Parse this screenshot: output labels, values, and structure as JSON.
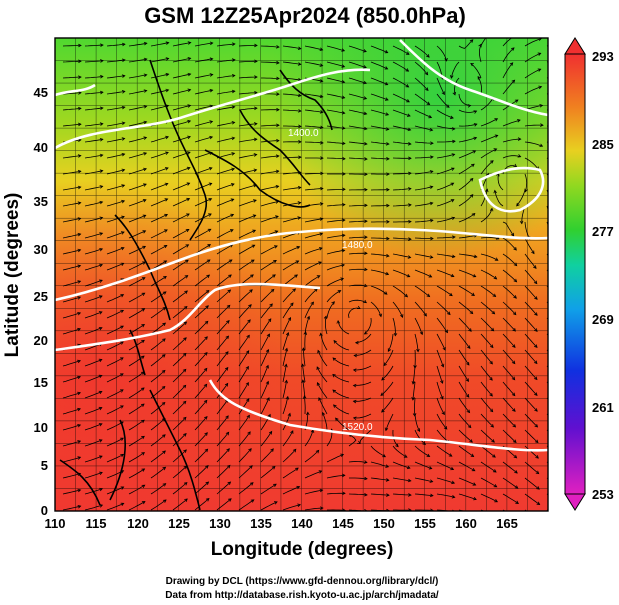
{
  "title": "GSM 12Z25Apr2024 (850.0hPa)",
  "x_axis": {
    "label": "Longitude (degrees)",
    "ticks": [
      "110",
      "115",
      "120",
      "125",
      "130",
      "135",
      "140",
      "145",
      "150",
      "155",
      "160",
      "165"
    ]
  },
  "y_axis": {
    "label": "Latitude  (degrees)",
    "ticks": [
      "0",
      "5",
      "10",
      "15",
      "20",
      "25",
      "30",
      "35",
      "40",
      "45"
    ]
  },
  "colorbar": {
    "min_label": "253",
    "labels": [
      "261",
      "269",
      "277",
      "285"
    ],
    "max_label": "293"
  },
  "contour_labels": [
    "1400.0",
    "1480.0",
    "1520.0"
  ],
  "credits": {
    "line1": "Drawing by DCL (https://www.gfd-dennou.org/library/dcl/)",
    "line2": "Data from http://database.rish.kyoto-u.ac.jp/arch/jmadata/"
  },
  "colors": {
    "cold_magenta": "#e020c0",
    "blue": "#1030e0",
    "cyan": "#10c0e0",
    "green": "#40d020",
    "yellow": "#e0e020",
    "orange": "#f09020",
    "red": "#f03030"
  }
}
